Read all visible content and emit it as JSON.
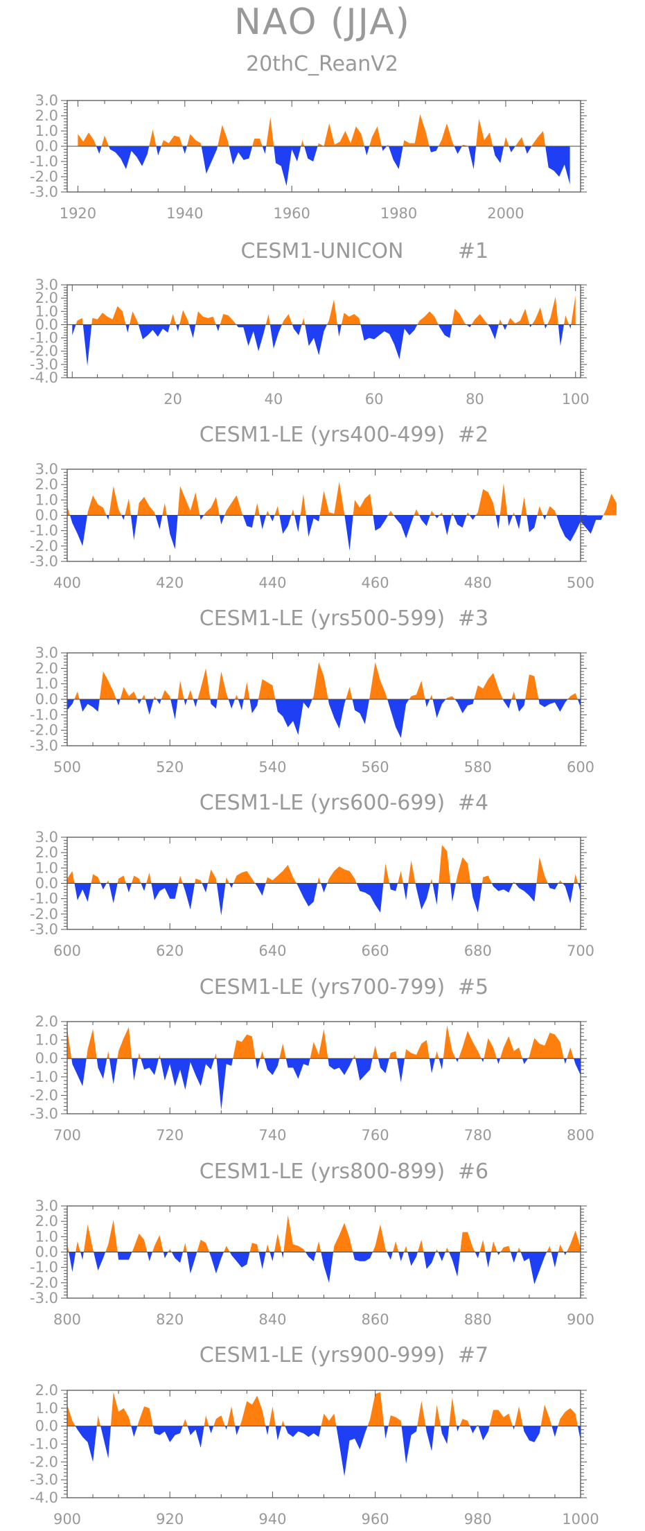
{
  "page_title": "NAO (JJA)",
  "colors": {
    "positive": "#ff7f0e",
    "negative": "#1f3ff5",
    "frame": "#555555",
    "text": "#999999"
  },
  "chart_data": [
    {
      "type": "area",
      "title": "20thC_ReanV2",
      "run": "",
      "xlim": [
        1918,
        2014
      ],
      "ylim": [
        -3.0,
        3.0
      ],
      "yticks": [
        "3.0",
        "2.0",
        "1.0",
        "0.0",
        "-1.0",
        "-2.0",
        "-3.0"
      ],
      "xticks": [
        1920,
        1940,
        1960,
        1980,
        2000
      ],
      "x_start": 1920,
      "values": [
        0.8,
        0.3,
        0.9,
        0.4,
        -0.5,
        0.7,
        -0.2,
        -0.4,
        -0.8,
        -1.5,
        -0.3,
        -0.7,
        -1.3,
        -0.5,
        1.1,
        -0.6,
        0.4,
        0.2,
        0.7,
        0.6,
        -0.5,
        0.8,
        0.4,
        0.2,
        -1.8,
        -1.0,
        -0.2,
        1.4,
        0.4,
        -1.2,
        -0.4,
        -0.9,
        -0.8,
        0.5,
        0.5,
        -0.5,
        1.9,
        -1.1,
        -1.3,
        -2.6,
        -0.2,
        -1.0,
        0.4,
        -0.8,
        -1.0,
        0.2,
        0.0,
        1.5,
        0.1,
        0.3,
        1.0,
        0.2,
        1.3,
        0.8,
        -0.6,
        0.6,
        1.3,
        -0.3,
        0.1,
        -0.9,
        -1.5,
        0.4,
        0.2,
        0.2,
        2.1,
        1.0,
        -0.4,
        -0.3,
        0.4,
        1.5,
        0.3,
        -0.5,
        0.1,
        0.0,
        -1.5,
        1.8,
        0.4,
        0.9,
        -0.6,
        -1.1,
        0.6,
        -0.4,
        0.1,
        0.6,
        -0.5,
        0.1,
        0.6,
        1.0,
        -1.4,
        -1.6,
        -2.0,
        -1.2,
        -2.5
      ]
    },
    {
      "type": "area",
      "title": "CESM1-UNICON",
      "run": "#1",
      "xlim": [
        -1,
        101
      ],
      "ylim": [
        -4.0,
        3.0
      ],
      "yticks": [
        "3.0",
        "2.0",
        "1.0",
        "0.0",
        "-1.0",
        "-2.0",
        "-3.0",
        "-4.0"
      ],
      "xticks": [
        20,
        40,
        60,
        80,
        100
      ],
      "x_start": 0,
      "values": [
        -0.8,
        0.3,
        0.5,
        -3.1,
        0.5,
        0.4,
        0.9,
        0.6,
        0.4,
        1.4,
        1.0,
        -0.6,
        1.0,
        0.2,
        -1.1,
        -0.8,
        -0.4,
        -0.9,
        -0.3,
        -0.6,
        0.8,
        -0.5,
        1.1,
        0.3,
        -1.0,
        1.0,
        0.6,
        0.5,
        0.6,
        -0.5,
        0.8,
        0.7,
        0.3,
        -0.2,
        -0.2,
        -1.6,
        -0.5,
        -2.0,
        -0.7,
        0.8,
        -1.8,
        -0.6,
        0.3,
        0.8,
        -0.3,
        -0.8,
        0.5,
        -1.6,
        -1.0,
        -2.3,
        -0.5,
        0.3,
        1.9,
        -0.9,
        0.9,
        0.6,
        0.8,
        0.5,
        -1.2,
        -1.0,
        -1.1,
        -0.8,
        -0.5,
        -0.7,
        -1.5,
        -2.6,
        -0.3,
        -0.8,
        -0.4,
        0.3,
        0.6,
        1.0,
        0.6,
        -0.2,
        -0.8,
        -1.0,
        1.2,
        0.8,
        0.1,
        -0.2,
        0.4,
        0.8,
        0.3,
        -0.2,
        -1.1,
        0.4,
        -0.4,
        0.5,
        0.1,
        0.3,
        1.2,
        -0.2,
        0.4,
        1.3,
        -0.3,
        0.5,
        2.1,
        -1.6,
        0.7,
        -0.3,
        2.2
      ]
    },
    {
      "type": "area",
      "title": "CESM1-LE (yrs400-499)",
      "run": "#2",
      "xlim": [
        400,
        500
      ],
      "ylim": [
        -3.0,
        3.0
      ],
      "yticks": [
        "3.0",
        "2.0",
        "1.0",
        "0.0",
        "-1.0",
        "-2.0",
        "-3.0"
      ],
      "xticks": [
        400,
        420,
        440,
        460,
        480,
        500
      ],
      "x_start": 400,
      "values": [
        0.6,
        -0.5,
        -1.2,
        -2.0,
        0.2,
        1.3,
        0.7,
        0.5,
        -0.3,
        1.9,
        0.4,
        -0.3,
        1.1,
        -1.6,
        0.8,
        1.2,
        0.6,
        0.2,
        -0.9,
        0.8,
        -1.2,
        -2.2,
        1.9,
        1.1,
        0.3,
        1.5,
        -0.3,
        0.2,
        0.5,
        1.2,
        -0.6,
        0.3,
        0.8,
        1.3,
        0.2,
        -0.7,
        -0.8,
        0.8,
        -0.9,
        0.3,
        -0.4,
        0.6,
        -1.2,
        -0.7,
        0.4,
        -1.1,
        1.4,
        -1.4,
        -0.2,
        -0.4,
        1.6,
        0.2,
        0.1,
        2.2,
        0.1,
        -2.3,
        1.0,
        0.5,
        1.1,
        1.4,
        -1.0,
        -0.8,
        -0.3,
        0.3,
        -0.2,
        -0.6,
        -1.5,
        -0.5,
        0.4,
        -0.3,
        -0.7,
        0.3,
        -0.2,
        0.2,
        -1.3,
        0.2,
        -0.6,
        -0.8,
        0.2,
        -0.3,
        0.2,
        1.7,
        1.5,
        0.8,
        -0.9,
        2.1,
        -0.7,
        0.2,
        -0.9,
        1.2,
        -1.1,
        -0.8,
        0.6,
        -0.3,
        0.6,
        0.3,
        -0.7,
        -1.4,
        -1.7,
        -1.1,
        -0.4,
        -0.8,
        -1.2,
        -0.3,
        -0.3,
        0.4,
        1.4,
        0.8
      ]
    },
    {
      "type": "area",
      "title": "CESM1-LE (yrs500-599)",
      "run": "#3",
      "xlim": [
        500,
        600
      ],
      "ylim": [
        -3.0,
        3.0
      ],
      "yticks": [
        "3.0",
        "2.0",
        "1.0",
        "0.0",
        "-1.0",
        "-2.0",
        "-3.0"
      ],
      "xticks": [
        500,
        520,
        540,
        560,
        580,
        600
      ],
      "x_start": 500,
      "values": [
        -0.7,
        -0.3,
        0.5,
        -0.8,
        -0.3,
        -0.5,
        -0.8,
        1.8,
        1.2,
        0.5,
        -0.4,
        0.8,
        0.2,
        0.5,
        -0.3,
        0.3,
        -1.0,
        0.2,
        -0.3,
        0.6,
        0.2,
        -1.3,
        1.2,
        -0.4,
        0.6,
        -0.5,
        0.7,
        2.0,
        -0.3,
        -0.6,
        1.8,
        0.4,
        -0.6,
        0.3,
        -0.7,
        1.1,
        -0.9,
        -0.4,
        1.3,
        1.1,
        0.9,
        -0.8,
        -1.1,
        -1.8,
        -1.4,
        -2.3,
        -0.2,
        -0.6,
        0.2,
        2.4,
        1.5,
        -0.3,
        -1.2,
        -1.9,
        -0.3,
        0.8,
        -0.7,
        -0.9,
        -1.6,
        0.3,
        2.4,
        1.2,
        0.4,
        -0.7,
        -1.8,
        -2.5,
        -0.3,
        0.2,
        0.3,
        1.2,
        -0.5,
        0.3,
        -1.2,
        -0.3,
        0.1,
        0.2,
        -0.2,
        -0.9,
        -0.4,
        -0.3,
        0.9,
        0.7,
        1.3,
        1.7,
        0.7,
        -0.1,
        -0.6,
        0.5,
        -0.8,
        -0.4,
        1.6,
        1.5,
        -0.3,
        -0.5,
        -0.3,
        -0.2,
        -0.8,
        -0.2,
        0.2,
        0.4,
        -0.5
      ]
    },
    {
      "type": "area",
      "title": "CESM1-LE (yrs600-699)",
      "run": "#4",
      "xlim": [
        600,
        700
      ],
      "ylim": [
        -3.0,
        3.0
      ],
      "yticks": [
        "3.0",
        "2.0",
        "1.0",
        "0.0",
        "-1.0",
        "-2.0",
        "-3.0"
      ],
      "xticks": [
        600,
        620,
        640,
        660,
        680,
        700
      ],
      "x_start": 600,
      "values": [
        0.3,
        0.8,
        -1.1,
        -0.4,
        -1.2,
        0.6,
        0.4,
        -0.4,
        0.2,
        -1.3,
        0.3,
        0.5,
        -0.6,
        0.5,
        0.3,
        -0.5,
        0.7,
        -1.1,
        -0.5,
        -0.3,
        -1.0,
        -1.0,
        0.5,
        -0.5,
        -1.7,
        0.3,
        0.2,
        -0.6,
        0.9,
        0.3,
        -2.1,
        0.4,
        -0.3,
        0.5,
        0.7,
        0.8,
        0.3,
        -0.2,
        -0.8,
        0.4,
        0.2,
        0.5,
        0.8,
        1.2,
        0.4,
        -0.2,
        -0.9,
        -1.5,
        -1.2,
        0.4,
        -0.6,
        0.3,
        0.8,
        1.1,
        0.9,
        0.8,
        0.3,
        -0.5,
        -0.6,
        -0.8,
        -1.4,
        -1.9,
        1.3,
        -0.4,
        -0.5,
        0.8,
        -1.1,
        1.5,
        -0.3,
        -1.7,
        -1.0,
        0.3,
        -1.4,
        2.5,
        2.1,
        -1.2,
        0.5,
        1.7,
        1.3,
        -0.9,
        -1.9,
        0.4,
        0.5,
        -0.2,
        -0.5,
        -0.4,
        -0.6,
        0.1,
        -0.3,
        -0.5,
        -0.8,
        -1.2,
        1.7,
        0.5,
        -0.3,
        -0.4,
        0.2,
        -0.2,
        -1.3,
        0.6,
        -0.6
      ]
    },
    {
      "type": "area",
      "title": "CESM1-LE (yrs700-799)",
      "run": "#5",
      "xlim": [
        700,
        800
      ],
      "ylim": [
        -3.0,
        2.0
      ],
      "yticks": [
        "2.0",
        "1.0",
        "0.0",
        "-1.0",
        "-2.0",
        "-3.0"
      ],
      "xticks": [
        700,
        720,
        740,
        760,
        780,
        800
      ],
      "x_start": 700,
      "values": [
        1.6,
        -0.3,
        -0.9,
        -1.5,
        0.5,
        1.6,
        -0.5,
        -1.1,
        0.4,
        -1.4,
        0.4,
        1.1,
        1.7,
        -1.2,
        0.3,
        -0.6,
        -0.5,
        -0.9,
        0.2,
        -1.2,
        -0.3,
        -1.5,
        -0.6,
        -1.7,
        -0.2,
        -0.9,
        -1.5,
        -0.3,
        -0.6,
        0.3,
        -2.8,
        -0.3,
        -0.4,
        1.0,
        0.9,
        1.3,
        1.2,
        -0.6,
        0.4,
        -0.6,
        -0.9,
        -0.4,
        0.8,
        -0.5,
        -0.5,
        -1.1,
        -0.3,
        -0.4,
        0.9,
        0.2,
        1.6,
        -0.4,
        -0.6,
        -0.5,
        -0.9,
        -0.4,
        0.2,
        -1.2,
        -0.9,
        -0.6,
        0.7,
        -0.5,
        -0.8,
        0.3,
        0.4,
        -1.3,
        0.5,
        0.3,
        0.2,
        0.8,
        1.0,
        -0.8,
        0.4,
        -0.6,
        1.8,
        0.4,
        -0.2,
        0.6,
        1.5,
        0.9,
        0.4,
        -0.2,
        1.1,
        0.6,
        -0.3,
        0.6,
        1.2,
        0.4,
        0.6,
        -0.3,
        0.1,
        1.1,
        0.8,
        0.7,
        1.4,
        1.3,
        0.9,
        -0.3,
        0.6,
        -0.3,
        -0.9
      ]
    },
    {
      "type": "area",
      "title": "CESM1-LE (yrs800-899)",
      "run": "#6",
      "xlim": [
        800,
        900
      ],
      "ylim": [
        -3.0,
        3.0
      ],
      "yticks": [
        "3.0",
        "2.0",
        "1.0",
        "0.0",
        "-1.0",
        "-2.0",
        "-3.0"
      ],
      "xticks": [
        800,
        820,
        840,
        860,
        880,
        900
      ],
      "x_start": 800,
      "values": [
        0.6,
        -1.3,
        0.7,
        -0.5,
        1.8,
        0.2,
        -1.2,
        -0.4,
        0.5,
        2.1,
        -0.5,
        -0.5,
        -0.5,
        0.3,
        1.2,
        0.8,
        -0.6,
        0.4,
        1.1,
        -0.4,
        0.2,
        -0.4,
        -0.7,
        0.6,
        -1.4,
        -0.3,
        0.8,
        0.6,
        -0.3,
        -1.4,
        -0.4,
        0.4,
        -0.2,
        -0.6,
        -1.0,
        -0.8,
        0.6,
        0.5,
        -1.1,
        0.5,
        -0.6,
        1.2,
        -0.4,
        2.4,
        0.5,
        0.4,
        0.2,
        -0.3,
        -0.6,
        0.7,
        -0.9,
        -2.0,
        0.4,
        1.1,
        1.9,
        0.9,
        -0.5,
        -0.6,
        -0.6,
        -0.4,
        0.4,
        1.8,
        0.2,
        -0.5,
        0.7,
        -0.6,
        0.4,
        -0.9,
        -0.3,
        0.8,
        -1.1,
        -0.7,
        0.2,
        -0.6,
        0.3,
        -0.5,
        -1.6,
        1.3,
        1.3,
        0.3,
        -0.4,
        0.8,
        -1.0,
        0.7,
        -0.2,
        0.3,
        0.4,
        -0.7,
        0.3,
        -0.6,
        -0.4,
        -2.1,
        -1.2,
        -0.3,
        0.4,
        -1.0,
        0.5,
        -0.2,
        0.5,
        1.4,
        0.3
      ]
    },
    {
      "type": "area",
      "title": "CESM1-LE (yrs900-999)",
      "run": "#7",
      "xlim": [
        900,
        1000
      ],
      "ylim": [
        -4.0,
        2.0
      ],
      "yticks": [
        "2.0",
        "1.0",
        "0.0",
        "-1.0",
        "-2.0",
        "-3.0",
        "-4.0"
      ],
      "xticks": [
        900,
        920,
        940,
        960,
        980,
        1000
      ],
      "x_start": 900,
      "values": [
        1.2,
        0.3,
        -0.2,
        -0.6,
        -0.9,
        -2.0,
        0.6,
        -0.6,
        -1.8,
        1.9,
        0.8,
        1.0,
        0.5,
        -0.6,
        0.3,
        1.1,
        1.0,
        -0.4,
        -0.5,
        -0.3,
        -0.9,
        -0.5,
        -0.4,
        0.4,
        -0.5,
        -0.2,
        -1.2,
        0.6,
        -0.4,
        0.4,
        0.6,
        -0.2,
        1.1,
        -0.5,
        0.3,
        1.4,
        1.2,
        1.7,
        0.9,
        -0.5,
        1.1,
        -0.8,
        0.3,
        -0.4,
        -0.6,
        -0.3,
        -0.4,
        -0.6,
        -0.4,
        -0.6,
        0.7,
        0.3,
        0.7,
        -1.0,
        -2.8,
        -0.8,
        -0.7,
        -1.3,
        -0.4,
        0.4,
        1.8,
        1.9,
        -0.7,
        0.6,
        0.5,
        0.3,
        -2.1,
        -0.5,
        -0.3,
        1.4,
        -0.3,
        -1.4,
        1.2,
        -0.4,
        -1.0,
        1.6,
        -0.3,
        0.4,
        0.3,
        -0.4,
        0.1,
        -0.8,
        -0.3,
        0.9,
        0.9,
        0.5,
        0.7,
        -0.2,
        1.1,
        -0.3,
        -0.8,
        -0.9,
        -0.4,
        1.2,
        0.4,
        -0.6,
        0.4,
        0.8,
        1.0,
        0.7,
        -0.8
      ]
    }
  ]
}
